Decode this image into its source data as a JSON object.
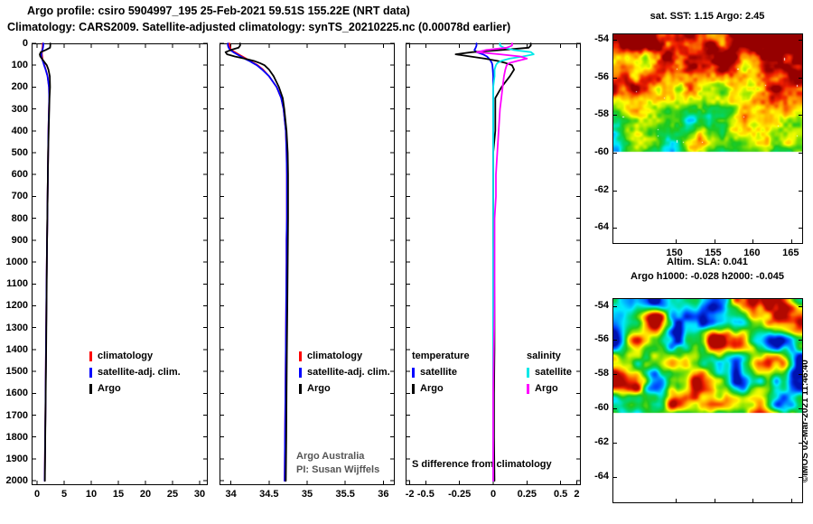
{
  "titles": {
    "line1": "Argo profile: csiro 5904997_195 25-Feb-2021 59.51S 155.22E (NRT data)",
    "line2": "Climatology: CARS2009. Satellite-adjusted climatology: synTS_20210225.nc (0.00078d earlier)"
  },
  "credit": "©IMOS 02-Mar-2021 11:46:40",
  "annotations": {
    "project": "Argo Australia",
    "pi": "PI: Susan Wijffels"
  },
  "colors": {
    "climatology": "#ff0000",
    "satellite_adj": "#0000ff",
    "argo": "#000000",
    "satellite_salinity": "#00e8e8",
    "argo_salinity": "#ff00ff"
  },
  "chart_data": [
    {
      "id": "temperature_profile",
      "type": "line",
      "title": "",
      "orientation": "vertical-profile",
      "x_range": [
        -1,
        31.5
      ],
      "x_ticks": [
        0,
        5,
        10,
        15,
        20,
        25,
        30
      ],
      "depth_range": [
        0,
        2020
      ],
      "depth_ticks": [
        0,
        100,
        200,
        300,
        400,
        500,
        600,
        700,
        800,
        900,
        1000,
        1100,
        1200,
        1300,
        1400,
        1500,
        1600,
        1700,
        1800,
        1900,
        2000
      ],
      "show_depth_labels": true,
      "depths": [
        0,
        10,
        20,
        30,
        40,
        50,
        60,
        70,
        80,
        90,
        100,
        120,
        150,
        200,
        250,
        300,
        400,
        500,
        600,
        700,
        800,
        900,
        1000,
        1200,
        1400,
        1600,
        1800,
        2000
      ],
      "series": [
        {
          "name": "climatology",
          "color": "#ff0000",
          "values": [
            1.05,
            1.05,
            1.0,
            0.95,
            0.9,
            0.9,
            0.95,
            1.0,
            1.1,
            1.2,
            1.35,
            1.6,
            1.95,
            2.2,
            2.25,
            2.2,
            2.1,
            2.05,
            2.0,
            1.95,
            1.9,
            1.85,
            1.8,
            1.72,
            1.65,
            1.58,
            1.5,
            1.42
          ]
        },
        {
          "name": "satellite-adj. clim.",
          "color": "#0000ff",
          "values": [
            1.15,
            1.15,
            1.1,
            1.0,
            0.85,
            0.8,
            0.82,
            0.9,
            1.05,
            1.18,
            1.3,
            1.58,
            1.93,
            2.2,
            2.25,
            2.2,
            2.1,
            2.05,
            2.0,
            1.95,
            1.9,
            1.85,
            1.8,
            1.72,
            1.65,
            1.58,
            1.5,
            1.42
          ]
        },
        {
          "name": "Argo",
          "color": "#000000",
          "values": [
            2.45,
            2.45,
            2.4,
            1.6,
            0.7,
            0.5,
            0.6,
            0.9,
            1.2,
            1.5,
            1.8,
            2.1,
            2.35,
            2.4,
            2.3,
            2.25,
            2.15,
            2.05,
            2.0,
            1.95,
            1.9,
            1.85,
            1.82,
            1.75,
            1.68,
            1.6,
            1.52,
            1.45
          ]
        }
      ]
    },
    {
      "id": "salinity_profile",
      "type": "line",
      "title": "",
      "orientation": "vertical-profile",
      "x_range": [
        33.85,
        36.15
      ],
      "x_ticks": [
        34,
        34.5,
        35,
        35.5,
        36
      ],
      "depth_range": [
        0,
        2020
      ],
      "depth_ticks": [
        0,
        100,
        200,
        300,
        400,
        500,
        600,
        700,
        800,
        900,
        1000,
        1100,
        1200,
        1300,
        1400,
        1500,
        1600,
        1700,
        1800,
        1900,
        2000
      ],
      "show_depth_labels": false,
      "depths": [
        0,
        10,
        20,
        30,
        40,
        50,
        60,
        70,
        80,
        90,
        100,
        120,
        150,
        200,
        250,
        300,
        400,
        500,
        600,
        700,
        800,
        900,
        1000,
        1200,
        1400,
        1600,
        1800,
        2000
      ],
      "series": [
        {
          "name": "climatology",
          "color": "#ff0000",
          "values": [
            33.98,
            33.98,
            33.99,
            34.0,
            34.05,
            34.1,
            34.15,
            34.2,
            34.25,
            34.3,
            34.35,
            34.42,
            34.5,
            34.6,
            34.66,
            34.69,
            34.72,
            34.73,
            34.735,
            34.735,
            34.735,
            34.73,
            34.73,
            34.725,
            34.72,
            34.715,
            34.71,
            34.705
          ]
        },
        {
          "name": "satellite-adj. clim.",
          "color": "#0000ff",
          "values": [
            33.96,
            33.96,
            33.97,
            33.99,
            34.03,
            34.08,
            34.13,
            34.18,
            34.24,
            34.29,
            34.34,
            34.41,
            34.5,
            34.6,
            34.66,
            34.69,
            34.72,
            34.73,
            34.735,
            34.735,
            34.735,
            34.73,
            34.73,
            34.725,
            34.72,
            34.715,
            34.71,
            34.705
          ]
        },
        {
          "name": "Argo",
          "color": "#000000",
          "values": [
            34.12,
            34.12,
            34.1,
            34.0,
            33.93,
            33.95,
            34.05,
            34.18,
            34.3,
            34.38,
            34.44,
            34.5,
            34.56,
            34.63,
            34.68,
            34.7,
            34.73,
            34.745,
            34.75,
            34.75,
            34.75,
            34.748,
            34.745,
            34.74,
            34.735,
            34.73,
            34.726,
            34.72
          ]
        }
      ]
    },
    {
      "id": "difference_profile",
      "type": "line",
      "title": "",
      "orientation": "vertical-profile",
      "label": "S difference from climatology",
      "t_range": [
        -2.1,
        2.1
      ],
      "t_ticks": [
        -2,
        2
      ],
      "s_range": [
        -0.65,
        0.65
      ],
      "s_ticks": [
        -0.5,
        -0.25,
        0,
        0.25,
        0.5
      ],
      "depth_range": [
        0,
        2020
      ],
      "depth_ticks": [
        0,
        100,
        200,
        300,
        400,
        500,
        600,
        700,
        800,
        900,
        1000,
        1100,
        1200,
        1300,
        1400,
        1500,
        1600,
        1700,
        1800,
        1900,
        2000
      ],
      "show_depth_labels": false,
      "depths": [
        0,
        10,
        20,
        30,
        40,
        50,
        60,
        70,
        80,
        90,
        100,
        120,
        150,
        200,
        250,
        300,
        400,
        500,
        600,
        700,
        800,
        900,
        1000,
        1200,
        1400,
        1600,
        1800,
        2000
      ],
      "legend": {
        "col1_header": "temperature",
        "col2_header": "salinity",
        "col1_items": [
          "satellite",
          "Argo"
        ],
        "col2_items": [
          "satellite",
          "Argo"
        ]
      },
      "series": [
        {
          "name": "satellite T diff",
          "scale": "t",
          "color": "#0000ff",
          "values": [
            -0.4,
            -0.4,
            -0.42,
            -0.45,
            -0.4,
            -0.25,
            -0.15,
            -0.1,
            -0.06,
            -0.03,
            -0.02,
            -0.01,
            0,
            0,
            0,
            0,
            0,
            0,
            0,
            0,
            0,
            0,
            0,
            0,
            0,
            0,
            0,
            0
          ]
        },
        {
          "name": "Argo T diff",
          "scale": "t",
          "color": "#000000",
          "values": [
            0.9,
            0.9,
            0.85,
            0.2,
            -0.5,
            -0.9,
            -0.55,
            -0.2,
            0.1,
            0.3,
            0.45,
            0.5,
            0.4,
            0.2,
            0.05,
            0.05,
            0.05,
            0,
            0,
            0,
            0,
            0,
            0.02,
            0.03,
            0.03,
            0.02,
            0.02,
            0.03
          ]
        },
        {
          "name": "satellite S diff",
          "scale": "s",
          "color": "#00e8e8",
          "values": [
            0.05,
            0.05,
            0.08,
            0.15,
            0.28,
            0.3,
            0.22,
            0.12,
            0.06,
            0.03,
            0.02,
            0.01,
            0.01,
            0,
            0,
            0,
            0,
            0,
            0,
            0,
            0,
            0,
            0,
            0,
            0,
            0,
            0,
            0
          ]
        },
        {
          "name": "Argo S diff",
          "scale": "s",
          "color": "#ff00ff",
          "values": [
            0.14,
            0.14,
            0.1,
            -0.05,
            -0.12,
            0.05,
            0.2,
            0.25,
            0.18,
            0.12,
            0.1,
            0.09,
            0.08,
            0.07,
            0.06,
            0.05,
            0.04,
            0.03,
            0.02,
            0.02,
            0.01,
            0.01,
            0.01,
            0.01,
            0.005,
            0,
            0,
            0
          ]
        }
      ]
    },
    {
      "id": "sst_map",
      "type": "heatmap",
      "title": "sat. SST: 1.15 Argo: 2.45",
      "colormap": "jet",
      "lon_range": [
        142,
        166.6
      ],
      "lat_range": [
        -53.7,
        -64.9
      ],
      "lon_ticks": [
        150,
        155,
        160,
        165
      ],
      "lat_ticks": [
        -54,
        -56,
        -58,
        -60,
        -62,
        -64
      ],
      "data_extent_lat": [
        -53.7,
        -60.0
      ],
      "show_lon_labels": true
    },
    {
      "id": "sla_map",
      "type": "heatmap",
      "title": "Altim. SLA: 0.041",
      "subtitle": "Argo h1000: -0.028 h2000: -0.045",
      "colormap": "jet",
      "lon_range": [
        142,
        166.6
      ],
      "lat_range": [
        -53.6,
        -65.6
      ],
      "lon_ticks": [
        150,
        155,
        160,
        165
      ],
      "lat_ticks": [
        -54,
        -56,
        -58,
        -60,
        -62,
        -64
      ],
      "data_extent_lat": [
        -53.6,
        -60.3
      ],
      "show_lon_labels": false
    }
  ]
}
